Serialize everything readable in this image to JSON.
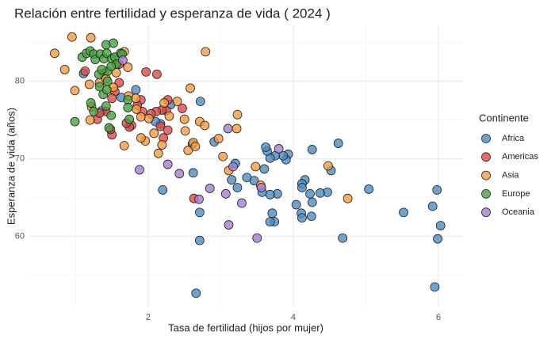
{
  "chart_data": {
    "type": "scatter",
    "title": "Relación entre fertilidad y esperanza de vida ( 2024 )",
    "x_label": "Tasa de fertilidad (hijos por mujer)",
    "y_label": "Esperanza de vida (años)",
    "legend_title": "Continente",
    "legend_position": "right",
    "grid": true,
    "xlim": [
      0.34,
      6.35
    ],
    "ylim": [
      50.9,
      87.2
    ],
    "xticks": [
      2,
      4,
      6
    ],
    "yticks": [
      60,
      70,
      80
    ],
    "minor_xticks": [
      1,
      3,
      5
    ],
    "minor_yticks": [
      55,
      65,
      75,
      85
    ],
    "series": [
      {
        "name": "Africa",
        "color": "#4a8cc4",
        "x": [
          2.66,
          5.95,
          5.99,
          6.03,
          5.92,
          5.98,
          5.52,
          5.04,
          4.68,
          4.62,
          4.52,
          4.47,
          4.37,
          4.25,
          4.26,
          4.23,
          4.16,
          4.12,
          4.12,
          4.11,
          4.12,
          4.04,
          4.26,
          3.93,
          3.9,
          3.86,
          3.75,
          3.68,
          3.64,
          3.62,
          3.6,
          3.78,
          3.74,
          3.68,
          3.71,
          3.68,
          3.57,
          3.46,
          3.36,
          3.23,
          3.15,
          3.2,
          2.91,
          2.61,
          2.62,
          2.71,
          2.71,
          2.72,
          2.2,
          2.17,
          2.31,
          2.1,
          1.36,
          1.63,
          1.83,
          1.11
        ],
        "values": [
          52.7,
          53.5,
          59.7,
          61.4,
          63.9,
          66.0,
          63.1,
          66.1,
          59.8,
          72.0,
          68.5,
          65.7,
          65.6,
          62.6,
          64.4,
          65.5,
          67.3,
          66.8,
          66.3,
          63.0,
          62.4,
          64.1,
          71.2,
          70.6,
          69.9,
          70.4,
          70.4,
          70.1,
          71.0,
          71.5,
          68.7,
          65.5,
          61.9,
          61.9,
          63.0,
          65.4,
          65.7,
          67.2,
          67.6,
          66.3,
          67.3,
          69.4,
          72.2,
          71.9,
          68.2,
          63.1,
          59.5,
          77.4,
          66.0,
          74.5,
          77.0,
          74.8,
          76.2,
          77.9,
          78.9,
          81.0
        ]
      },
      {
        "name": "Americas",
        "color": "#e0484a",
        "x": [
          2.63,
          2.17,
          2.21,
          2.25,
          2.27,
          2.27,
          2.19,
          2.47,
          2.12,
          2.11,
          2.04,
          1.97,
          1.92,
          1.9,
          1.85,
          1.77,
          1.74,
          1.7,
          1.6,
          1.54,
          1.5,
          1.5,
          1.42,
          1.39,
          1.13,
          1.6,
          1.3,
          1.48,
          1.33
        ],
        "values": [
          64.9,
          74.2,
          72.7,
          76.2,
          73.7,
          77.6,
          76.3,
          76.5,
          80.9,
          76.1,
          75.8,
          81.2,
          76.1,
          77.6,
          76.9,
          74.3,
          74.1,
          74.6,
          79.8,
          78.7,
          77.8,
          73.1,
          76.1,
          81.0,
          81.3,
          82.2,
          75.1,
          73.8,
          75.9
        ]
      },
      {
        "name": "Asia",
        "color": "#f89a3c",
        "x": [
          0.95,
          1.21,
          0.71,
          0.85,
          0.99,
          1.19,
          1.2,
          1.22,
          1.33,
          1.42,
          1.56,
          1.67,
          1.72,
          1.73,
          1.67,
          1.83,
          1.84,
          1.9,
          1.96,
          1.9,
          2.01,
          2.08,
          2.14,
          2.19,
          2.29,
          2.4,
          2.22,
          2.5,
          2.51,
          2.55,
          2.58,
          2.62,
          2.65,
          2.71,
          2.78,
          2.79,
          2.97,
          3.03,
          3.11,
          3.22,
          3.23,
          3.48,
          3.55,
          4.48,
          4.75,
          1.52
        ],
        "values": [
          85.7,
          85.6,
          83.6,
          81.5,
          78.8,
          79.6,
          75.0,
          76.7,
          79.8,
          80.3,
          81.1,
          83.8,
          81.8,
          78.1,
          71.7,
          77.8,
          76.4,
          75.4,
          72.3,
          72.7,
          75.2,
          73.3,
          70.7,
          71.8,
          75.5,
          77.4,
          77.2,
          75.1,
          73.6,
          71.1,
          79.1,
          72.1,
          71.6,
          74.8,
          74.3,
          83.8,
          72.6,
          70.3,
          68.5,
          73.9,
          75.7,
          69.0,
          66.6,
          69.1,
          64.9,
          79.2
        ]
      },
      {
        "name": "Europe",
        "color": "#44a33f",
        "x": [
          0.99,
          1.09,
          1.15,
          1.2,
          1.25,
          1.27,
          1.34,
          1.39,
          1.42,
          1.52,
          1.43,
          1.5,
          1.54,
          1.62,
          1.56,
          1.44,
          1.49,
          1.32,
          1.36,
          1.33,
          1.44,
          1.38,
          1.21,
          1.25,
          1.42,
          1.49,
          1.46,
          1.72,
          1.74,
          1.72,
          1.64,
          1.43
        ],
        "values": [
          74.8,
          83.1,
          83.6,
          83.9,
          83.5,
          82.8,
          83.5,
          82.9,
          84.7,
          84.9,
          83.6,
          82.9,
          83.1,
          83.6,
          82.2,
          81.3,
          81.9,
          80.9,
          81.5,
          79.3,
          80.0,
          78.3,
          77.2,
          76.1,
          76.8,
          75.6,
          74.0,
          77.6,
          75.1,
          76.6,
          83.5,
          78.9
        ]
      },
      {
        "name": "Oceania",
        "color": "#a57cd2",
        "x": [
          1.65,
          1.88,
          2.27,
          2.43,
          2.7,
          2.85,
          3.07,
          3.1,
          3.17,
          3.11,
          3.29,
          3.5,
          3.56,
          3.8
        ],
        "values": [
          82.7,
          68.6,
          69.3,
          68.1,
          64.8,
          66.2,
          65.5,
          73.9,
          69.0,
          61.5,
          64.3,
          59.8,
          66.3,
          71.3
        ]
      }
    ]
  }
}
